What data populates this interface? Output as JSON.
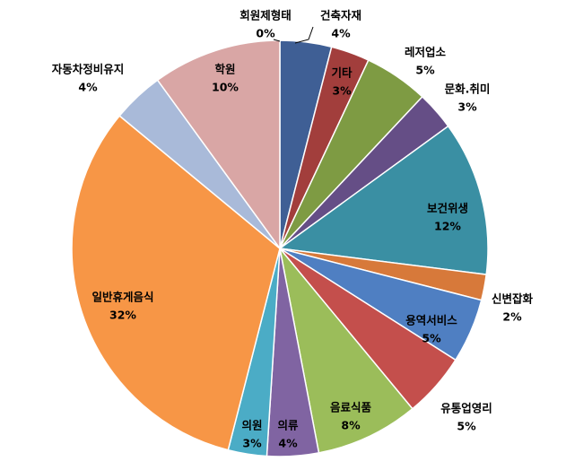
{
  "chart_data": {
    "type": "pie",
    "title": "",
    "slices": [
      {
        "name": "건축자재",
        "value": 4,
        "label": "4%",
        "color": "#3F5F95"
      },
      {
        "name": "기타",
        "value": 3,
        "label": "3%",
        "color": "#A23E3C"
      },
      {
        "name": "레저업소",
        "value": 5,
        "label": "5%",
        "color": "#7E9B43"
      },
      {
        "name": "문화.취미",
        "value": 3,
        "label": "3%",
        "color": "#654E86"
      },
      {
        "name": "보건위생",
        "value": 12,
        "label": "12%",
        "color": "#3A8FA3"
      },
      {
        "name": "신변잡화",
        "value": 2,
        "label": "2%",
        "color": "#D7793A"
      },
      {
        "name": "용역서비스",
        "value": 5,
        "label": "5%",
        "color": "#4F7FC2"
      },
      {
        "name": "유통업영리",
        "value": 5,
        "label": "5%",
        "color": "#C44F4C"
      },
      {
        "name": "음료식품",
        "value": 8,
        "label": "8%",
        "color": "#9BBD5A"
      },
      {
        "name": "의류",
        "value": 4,
        "label": "4%",
        "color": "#8064A2"
      },
      {
        "name": "의원",
        "value": 3,
        "label": "3%",
        "color": "#4BACC6"
      },
      {
        "name": "일반휴게음식",
        "value": 32,
        "label": "32%",
        "color": "#F79646"
      },
      {
        "name": "자동차정비유지",
        "value": 4,
        "label": "4%",
        "color": "#A9BAD9"
      },
      {
        "name": "학원",
        "value": 10,
        "label": "10%",
        "color": "#D9A6A5"
      },
      {
        "name": "회원제형태",
        "value": 0,
        "label": "0%",
        "color": "#2E4A7A"
      }
    ]
  }
}
